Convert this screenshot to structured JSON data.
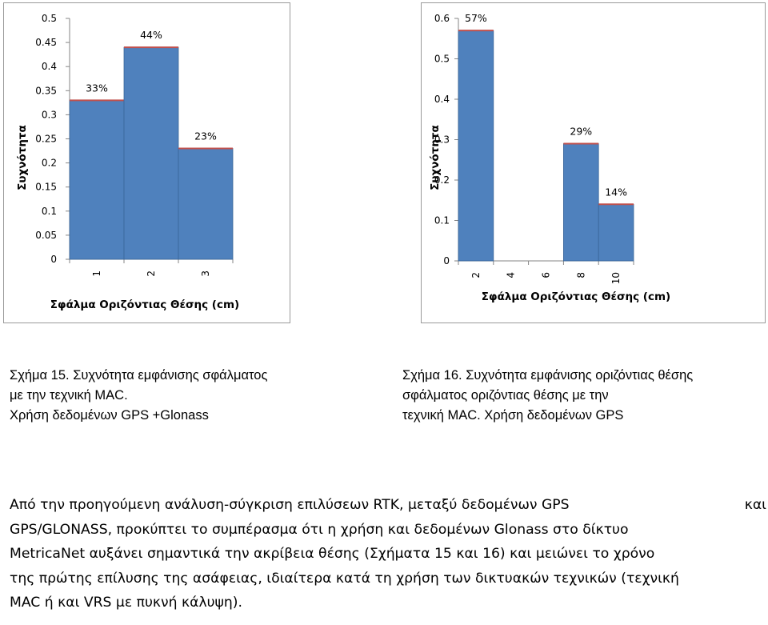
{
  "chart_data": [
    {
      "type": "bar",
      "categories": [
        "1",
        "2",
        "3"
      ],
      "values": [
        0.33,
        0.44,
        0.23
      ],
      "data_labels": [
        "33%",
        "44%",
        "23%"
      ],
      "xlabel": "Σφάλμα Οριζόντιας Θέσης (cm)",
      "ylabel": "Συχνότητα",
      "ylim": [
        0,
        0.5
      ],
      "yticks": [
        "0",
        "0.05",
        "0.1",
        "0.15",
        "0.2",
        "0.25",
        "0.3",
        "0.35",
        "0.4",
        "0.45",
        "0.5"
      ],
      "bar_color": "#4f81bd",
      "bar_top_color": "#c0504d",
      "grid": false,
      "legend": "none"
    },
    {
      "type": "bar",
      "categories": [
        "2",
        "4",
        "6",
        "8",
        "10"
      ],
      "values": [
        0.57,
        0,
        0,
        0.29,
        0.14
      ],
      "data_labels": [
        "57%",
        "",
        "",
        "29%",
        "14%"
      ],
      "xlabel": "Σφάλμα Οριζόντιας Θέσης (cm)",
      "ylabel": "Συχνότητα",
      "ylim": [
        0,
        0.6
      ],
      "yticks": [
        "0",
        "0.1",
        "0.2",
        "0.3",
        "0.4",
        "0.5",
        "0.6"
      ],
      "bar_color": "#4f81bd",
      "bar_top_color": "#c0504d",
      "grid": false,
      "legend": "none"
    }
  ],
  "captions": {
    "fig15": [
      "Σχήμα 15. Συχνότητα εμφάνισης σφάλματος",
      "με την τεχνική MAC.",
      "Χρήση δεδομένων GPS +Glonass"
    ],
    "fig16": [
      "Σχήμα 16. Συχνότητα εμφάνισης οριζόντιας θέσης",
      "σφάλματος οριζόντιας θέσης με την",
      "τεχνική MAC. Χρήση δεδομένων  GPS"
    ]
  },
  "paragraph": {
    "line1_a": "Από την προηγούμενη ανάλυση-σύγκριση επιλύσεων RTK, μεταξύ δεδομένων GPS",
    "line1_b": "και",
    "line2": "GPS/GLONASS, προκύπτει το συμπέρασμα ότι η χρήση και δεδομένων Glonass στο δίκτυο",
    "line3": "MetricaNet αυξάνει σημαντικά την ακρίβεια  θέσης (Σχήματα 15 και 16) και μειώνει το χρόνο",
    "line4": "της πρώτης επίλυσης της ασάφειας, ιδιαίτερα κατά τη χρήση των δικτυακών τεχνικών (τεχνική",
    "line5": "MAC ή και VRS με πυκνή κάλυψη)."
  }
}
